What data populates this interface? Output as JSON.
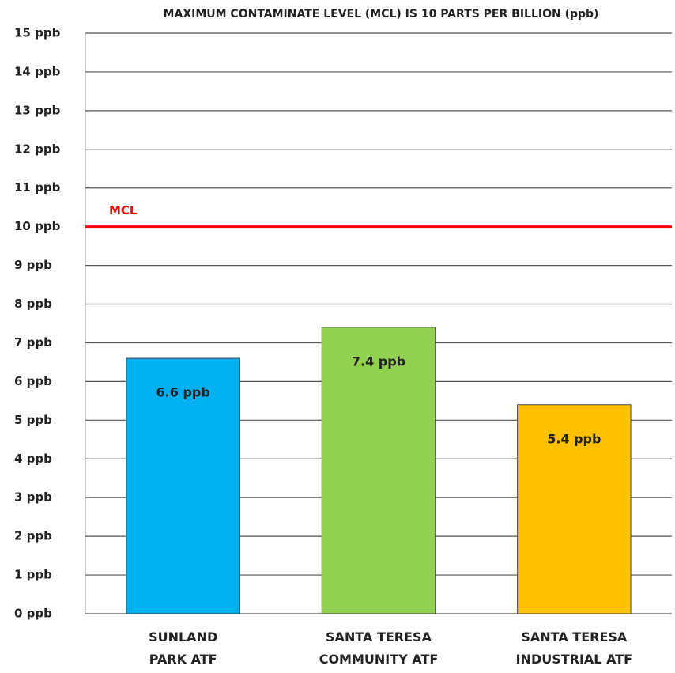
{
  "chart_data": {
    "type": "bar",
    "title": "MAXIMUM CONTAMINATE LEVEL (MCL) IS 10 PARTS PER BILLION (ppb)",
    "categories": [
      "SUNLAND\nPARK ATF",
      "SANTA TERESA\nCOMMUNITY ATF",
      "SANTA TERESA\nINDUSTRIAL ATF"
    ],
    "values": [
      6.6,
      7.4,
      5.4
    ],
    "value_labels": [
      "6.6 ppb",
      "7.4 ppb",
      "5.4 ppb"
    ],
    "colors": [
      "#00b0f0",
      "#92d050",
      "#ffc000"
    ],
    "ylim": [
      0,
      15
    ],
    "yticks": [
      {
        "value": 0,
        "label": "0 ppb"
      },
      {
        "value": 1,
        "label": "1 ppb"
      },
      {
        "value": 2,
        "label": "2 ppb"
      },
      {
        "value": 3,
        "label": "3 ppb"
      },
      {
        "value": 4,
        "label": "4 ppb"
      },
      {
        "value": 5,
        "label": "5 ppb"
      },
      {
        "value": 6,
        "label": "6 ppb"
      },
      {
        "value": 7,
        "label": "7 ppb"
      },
      {
        "value": 8,
        "label": "8 ppb"
      },
      {
        "value": 9,
        "label": "9 ppb"
      },
      {
        "value": 10,
        "label": "10 ppb"
      },
      {
        "value": 11,
        "label": "11 ppb"
      },
      {
        "value": 12,
        "label": "12 ppb"
      },
      {
        "value": 13,
        "label": "13 ppb"
      },
      {
        "value": 14,
        "label": "14 ppb"
      },
      {
        "value": 15,
        "label": "15 ppb"
      }
    ],
    "grid": true,
    "reference_line": {
      "value": 10,
      "label": "MCL",
      "color": "#ff0000"
    }
  }
}
